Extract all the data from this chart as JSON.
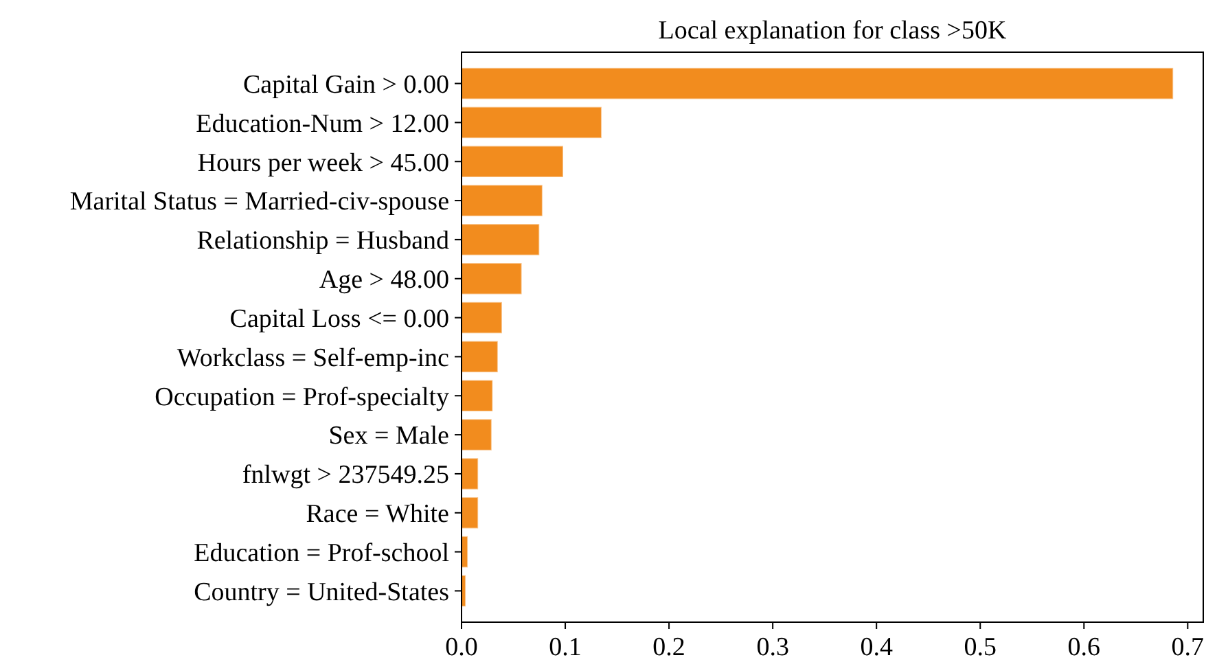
{
  "chart_data": {
    "type": "bar",
    "orientation": "horizontal",
    "title": "Local explanation for class >50K",
    "categories": [
      "Capital Gain > 0.00",
      "Education-Num > 12.00",
      "Hours per week > 45.00",
      "Marital Status = Married-civ-spouse",
      "Relationship = Husband",
      "Age > 48.00",
      "Capital Loss <= 0.00",
      "Workclass = Self-emp-inc",
      "Occupation = Prof-specialty",
      "Sex = Male",
      "fnlwgt > 237549.25",
      "Race = White",
      "Education = Prof-school",
      "Country = United-States"
    ],
    "values": [
      0.686,
      0.135,
      0.098,
      0.078,
      0.075,
      0.058,
      0.039,
      0.035,
      0.03,
      0.029,
      0.016,
      0.016,
      0.006,
      0.004
    ],
    "color": "#f28c1e",
    "xlim": [
      0,
      0.715
    ],
    "xticks": [
      {
        "value": 0,
        "label": "0.0"
      },
      0.1,
      0.2,
      0.3,
      0.4,
      0.5,
      0.6,
      0.7
    ]
  }
}
